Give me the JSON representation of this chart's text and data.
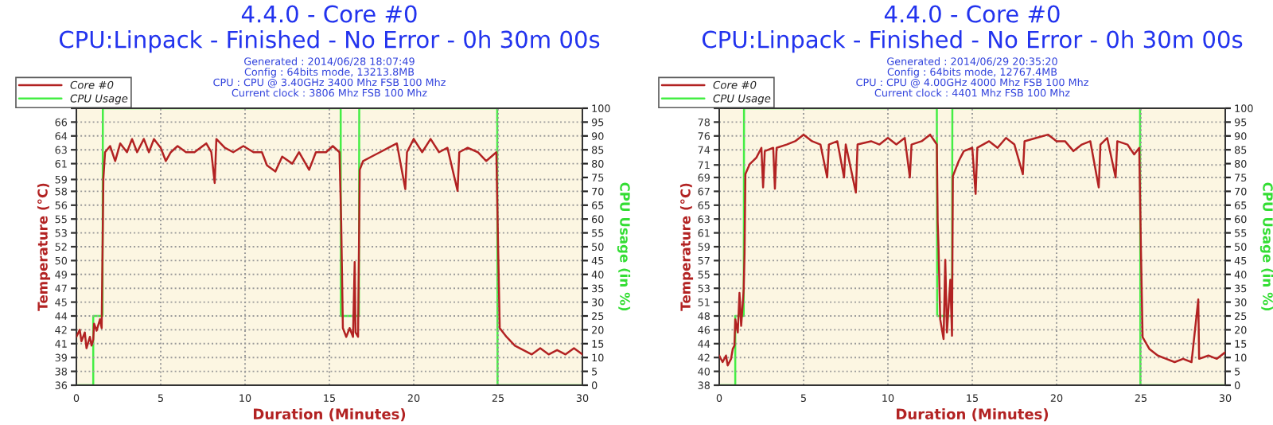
{
  "chart_data": [
    {
      "type": "line",
      "title": "4.4.0 - Core #0",
      "subtitle": "CPU:Linpack - Finished - No Error - 0h 30m 00s",
      "annotations": [
        "Generated : 2014/06/28 18:07:49",
        "Config : 64bits mode, 13213.8MB",
        "CPU : CPU @ 3.40GHz 3400 Mhz FSB 100 Mhz",
        "Current clock : 3806 Mhz FSB 100 Mhz"
      ],
      "xlabel": "Duration (Minutes)",
      "ylabel": "Temperature (°C)",
      "y2label": "CPU Usage (in %)",
      "xlim": [
        0,
        30
      ],
      "xticks": [
        0,
        5,
        10,
        15,
        20,
        25,
        30
      ],
      "ylim": [
        36,
        67.5
      ],
      "yticks": [
        {
          "value": 36,
          "label": "36"
        },
        {
          "value": 37.575,
          "label": "38"
        },
        {
          "value": 39.15,
          "label": "39"
        },
        {
          "value": 40.725,
          "label": "41"
        },
        {
          "value": 42.3,
          "label": "42"
        },
        {
          "value": 43.875,
          "label": "44"
        },
        {
          "value": 45.45,
          "label": "45"
        },
        {
          "value": 47.025,
          "label": "47"
        },
        {
          "value": 48.6,
          "label": "49"
        },
        {
          "value": 50.175,
          "label": "50"
        },
        {
          "value": 51.75,
          "label": "52"
        },
        {
          "value": 53.325,
          "label": "53"
        },
        {
          "value": 54.9,
          "label": "55"
        },
        {
          "value": 56.475,
          "label": "56"
        },
        {
          "value": 58.05,
          "label": "58"
        },
        {
          "value": 59.4,
          "label": "59"
        },
        {
          "value": 61.2,
          "label": "61"
        },
        {
          "value": 62.775,
          "label": "63"
        },
        {
          "value": 64.35,
          "label": "64"
        },
        {
          "value": 65.925,
          "label": "66"
        },
        {
          "value": 67.5,
          "label": null
        }
      ],
      "y2lim": [
        0,
        100
      ],
      "y2ticks": [
        0,
        5,
        10,
        15,
        20,
        25,
        30,
        35,
        40,
        45,
        50,
        55,
        60,
        65,
        70,
        75,
        80,
        85,
        90,
        95,
        100
      ],
      "grid": true,
      "legend": "top left",
      "marker": "none",
      "line_style": "solid",
      "series": [
        {
          "name": "Core #0",
          "color": "#b22222",
          "x": [
            0,
            0.2,
            0.3,
            0.5,
            0.6,
            0.8,
            0.9,
            1.0,
            1.05,
            1.2,
            1.4,
            1.5,
            1.6,
            1.7,
            2.0,
            2.3,
            2.6,
            3.0,
            3.3,
            3.6,
            4.0,
            4.3,
            4.6,
            5.0,
            5.3,
            5.6,
            6.0,
            6.5,
            7.0,
            7.7,
            8.0,
            8.2,
            8.3,
            8.8,
            9.3,
            9.9,
            10.5,
            11.0,
            11.3,
            11.8,
            12.2,
            12.8,
            13.2,
            13.8,
            14.2,
            14.8,
            15.2,
            15.6,
            15.7,
            15.8,
            16.0,
            16.2,
            16.4,
            16.5,
            16.55,
            16.7,
            16.8,
            17.0,
            17.5,
            18.0,
            18.5,
            19.0,
            19.5,
            19.6,
            20.0,
            20.5,
            21.0,
            21.5,
            22.0,
            22.6,
            22.7,
            23.2,
            23.8,
            24.3,
            24.9,
            25.0,
            25.1,
            25.5,
            26.0,
            26.5,
            27.0,
            27.5,
            28.0,
            28.5,
            29.0,
            29.5,
            30.0
          ],
          "values": [
            41.5,
            42.3,
            41,
            42,
            40.2,
            41.5,
            40.5,
            41.2,
            43,
            42.2,
            43.5,
            42.5,
            59.5,
            62.5,
            63.2,
            61.5,
            63.5,
            62.5,
            64,
            62.5,
            64,
            62.5,
            64,
            63,
            61.5,
            62.5,
            63.2,
            62.5,
            62.5,
            63.5,
            62.5,
            59,
            64,
            63,
            62.5,
            63.2,
            62.5,
            62.5,
            61,
            60.3,
            62,
            61.2,
            62.5,
            60.5,
            62.5,
            62.5,
            63.2,
            62.5,
            54.5,
            42.5,
            41.5,
            42.5,
            41.5,
            50,
            42,
            41.5,
            60.5,
            61.5,
            62,
            62.5,
            63,
            63.5,
            58.3,
            62.5,
            64,
            62.5,
            64,
            62.5,
            63,
            58.1,
            62.5,
            63,
            62.5,
            61.5,
            62.5,
            52,
            42.5,
            41.5,
            40.5,
            40,
            39.5,
            40.2,
            39.5,
            40,
            39.5,
            40.2,
            39.5
          ]
        },
        {
          "name": "CPU Usage",
          "color": "#44ee44",
          "axis": "y2",
          "x": [
            0,
            1.0,
            1.0,
            1.55,
            1.57,
            15.67,
            15.68,
            16.75,
            16.77,
            24.95,
            24.97,
            30
          ],
          "values": [
            0,
            0,
            25,
            25,
            100,
            100,
            25,
            25,
            100,
            100,
            0,
            0
          ]
        }
      ]
    },
    {
      "type": "line",
      "title": "4.4.0 - Core #0",
      "subtitle": "CPU:Linpack - Finished - No Error - 0h 30m 00s",
      "annotations": [
        "Generated : 2014/06/29 20:35:20",
        "Config : 64bits mode, 12767.4MB",
        "CPU : CPU @ 4.00GHz 4000 Mhz FSB 100 Mhz",
        "Current clock : 4401 Mhz FSB 100 Mhz"
      ],
      "xlabel": "Duration (Minutes)",
      "ylabel": "Temperature (°C)",
      "y2label": "CPU Usage (in %)",
      "xlim": [
        0,
        30
      ],
      "xticks": [
        0,
        5,
        10,
        15,
        20,
        25,
        30
      ],
      "ylim": [
        38,
        80
      ],
      "yticks": [
        {
          "value": 38,
          "label": "38"
        },
        {
          "value": 40.1,
          "label": "40"
        },
        {
          "value": 42.2,
          "label": "42"
        },
        {
          "value": 44.3,
          "label": "44"
        },
        {
          "value": 46.4,
          "label": "46"
        },
        {
          "value": 48.5,
          "label": "48"
        },
        {
          "value": 50.6,
          "label": "51"
        },
        {
          "value": 52.7,
          "label": "53"
        },
        {
          "value": 54.8,
          "label": "55"
        },
        {
          "value": 56.9,
          "label": "57"
        },
        {
          "value": 59,
          "label": "59"
        },
        {
          "value": 61.1,
          "label": "61"
        },
        {
          "value": 63.2,
          "label": "63"
        },
        {
          "value": 65.3,
          "label": "65"
        },
        {
          "value": 67.4,
          "label": "67"
        },
        {
          "value": 69.5,
          "label": "69"
        },
        {
          "value": 71.4,
          "label": "71"
        },
        {
          "value": 73.7,
          "label": "74"
        },
        {
          "value": 75.8,
          "label": "76"
        },
        {
          "value": 77.9,
          "label": "78"
        },
        {
          "value": 80,
          "label": null
        }
      ],
      "y2lim": [
        0,
        100
      ],
      "y2ticks": [
        0,
        5,
        10,
        15,
        20,
        25,
        30,
        35,
        40,
        45,
        50,
        55,
        60,
        65,
        70,
        75,
        80,
        85,
        90,
        95,
        100
      ],
      "grid": true,
      "legend": "top left",
      "marker": "none",
      "line_style": "solid",
      "series": [
        {
          "name": "Core #0",
          "color": "#b22222",
          "x": [
            0,
            0.2,
            0.4,
            0.5,
            0.7,
            0.8,
            0.9,
            0.95,
            1.1,
            1.2,
            1.3,
            1.45,
            1.5,
            1.55,
            1.8,
            2.2,
            2.5,
            2.6,
            2.7,
            3.2,
            3.3,
            3.4,
            4.0,
            4.5,
            5.0,
            5.5,
            6.0,
            6.4,
            6.5,
            7.0,
            7.4,
            7.5,
            8.1,
            8.2,
            9.0,
            9.5,
            10.0,
            10.5,
            11.0,
            11.3,
            11.4,
            12.0,
            12.5,
            12.9,
            12.95,
            13.0,
            13.1,
            13.3,
            13.4,
            13.5,
            13.7,
            13.8,
            13.85,
            14.2,
            14.5,
            15.0,
            15.2,
            15.3,
            16.0,
            16.5,
            17.0,
            17.5,
            18.0,
            18.1,
            18.8,
            19.5,
            20.0,
            20.5,
            21.0,
            21.5,
            22.0,
            22.5,
            22.6,
            23.0,
            23.5,
            23.6,
            24.2,
            24.6,
            24.9,
            25.0,
            25.1,
            25.5,
            26.0,
            26.5,
            27.0,
            27.5,
            28.0,
            28.4,
            28.45,
            29.0,
            29.5,
            30.0
          ],
          "values": [
            42.5,
            41.5,
            42.5,
            41,
            42,
            43.5,
            44,
            48,
            46,
            52,
            47,
            52.5,
            58,
            70,
            71.5,
            72.5,
            74,
            68,
            73.5,
            74,
            67.8,
            74,
            74.5,
            75,
            76,
            75,
            74.5,
            69.5,
            74.5,
            75,
            69.5,
            74.5,
            67.2,
            74.5,
            75,
            74.5,
            75.5,
            74.5,
            75.5,
            69.5,
            74.5,
            75,
            76,
            74.5,
            62.8,
            59,
            48,
            45,
            57,
            46,
            54,
            45.5,
            69.7,
            72,
            73.5,
            74,
            67,
            74,
            75,
            74,
            75.5,
            74.5,
            70,
            75,
            75.5,
            76,
            75,
            75,
            73.5,
            74.5,
            75,
            68,
            74.5,
            75.5,
            69.5,
            75,
            74.5,
            73,
            74,
            58.7,
            45.3,
            43.5,
            42.5,
            42,
            41.5,
            42,
            41.5,
            51,
            42,
            42.5,
            42,
            43
          ]
        },
        {
          "name": "CPU Usage",
          "color": "#44ee44",
          "axis": "y2",
          "x": [
            0,
            0.95,
            0.95,
            1.45,
            1.47,
            12.9,
            12.92,
            13.8,
            13.82,
            24.95,
            24.97,
            30
          ],
          "values": [
            0,
            0,
            25,
            25,
            100,
            100,
            25,
            25,
            100,
            100,
            0,
            0
          ]
        }
      ]
    }
  ]
}
